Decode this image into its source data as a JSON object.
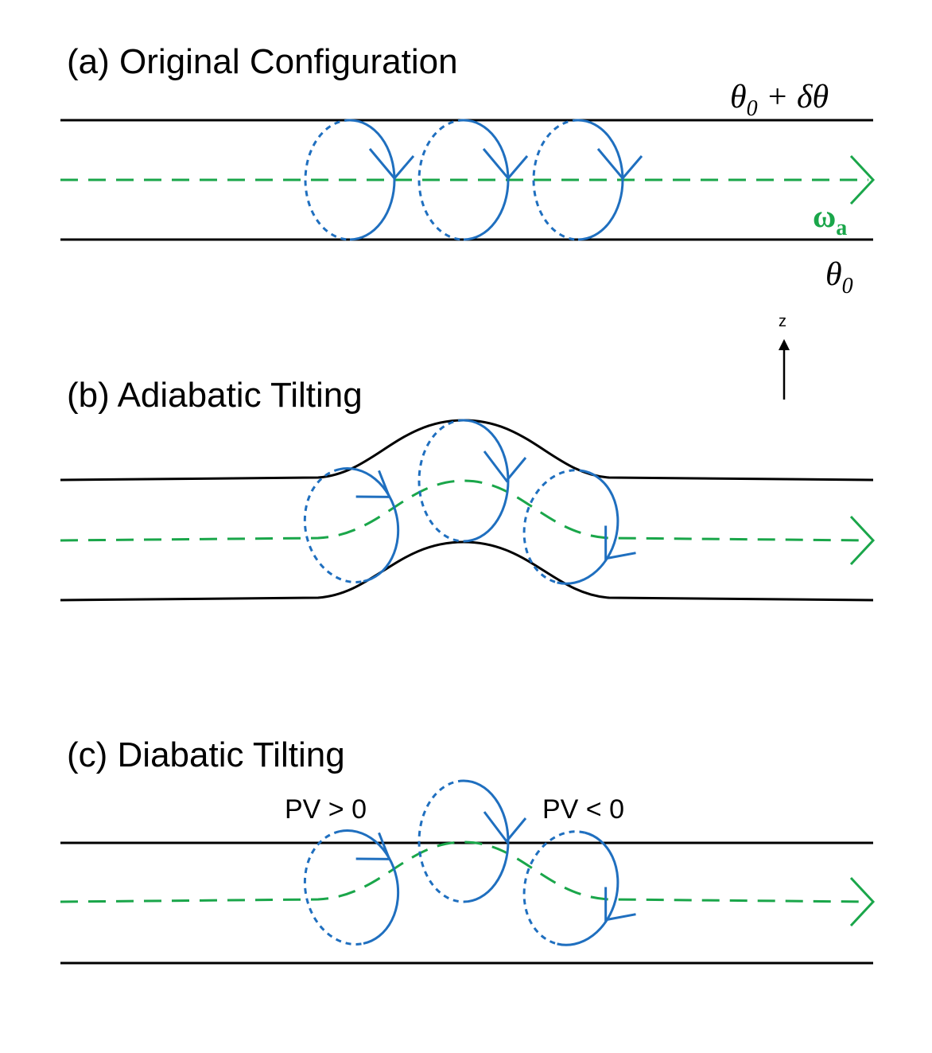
{
  "panels": {
    "a": {
      "title": "(a) Original Configuration"
    },
    "b": {
      "title": "(b) Adiabatic Tilting"
    },
    "c": {
      "title": "(c) Diabatic Tilting",
      "pv_positive": "PV > 0",
      "pv_negative": "PV < 0"
    }
  },
  "labels": {
    "theta_upper": "θ0 + δθ",
    "theta_upper_base": "θ",
    "theta_upper_sub": "0",
    "theta_upper_rest": " + δθ",
    "theta_lower_base": "θ",
    "theta_lower_sub": "0",
    "omega_base": "ω",
    "omega_sub": "a",
    "z_axis": "z"
  },
  "colors": {
    "isentrope": "#000000",
    "absolute_vorticity": "#1aa64a",
    "vortex_loops": "#1f6fbf"
  }
}
